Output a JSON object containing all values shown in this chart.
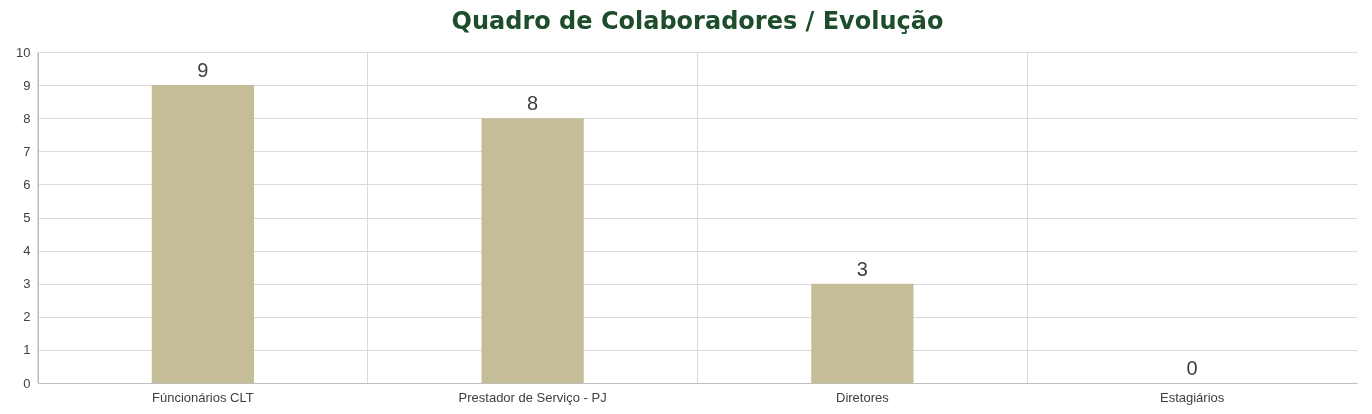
{
  "chart_data": {
    "type": "bar",
    "title": "Quadro de Colaboradores / Evolução",
    "categories": [
      "Fúncionários CLT",
      "Prestador de Serviço - PJ",
      "Diretores",
      "Estagiários"
    ],
    "values": [
      9,
      8,
      3,
      0
    ],
    "color": "#c4bd97",
    "ylim": [
      0,
      10
    ],
    "yticks": [
      0,
      1,
      2,
      3,
      4,
      5,
      6,
      7,
      8,
      9,
      10
    ],
    "grid": true,
    "data_labels": true
  }
}
